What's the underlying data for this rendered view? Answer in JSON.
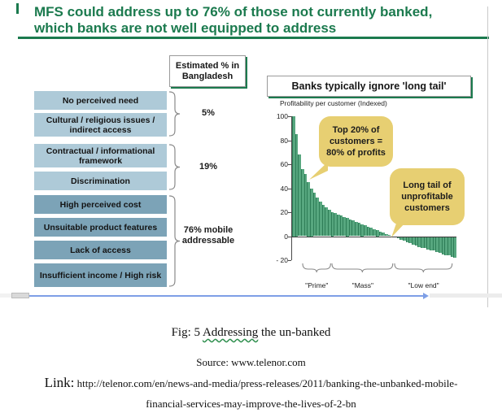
{
  "slide": {
    "title_line1": "MFS could address up to 76% of those not currently banked,",
    "title_line2": "which banks are not well equipped to address",
    "accent_color": "#1b7a4e"
  },
  "left_panel": {
    "header": "Estimated % in Bangladesh",
    "boxes": [
      {
        "text": "No perceived need",
        "shade": "light"
      },
      {
        "text": "Cultural / religious issues / indirect access",
        "shade": "light"
      },
      {
        "text": "Contractual / informational framework",
        "shade": "light"
      },
      {
        "text": "Discrimination",
        "shade": "light"
      },
      {
        "text": "High perceived cost",
        "shade": "dark"
      },
      {
        "text": "Unsuitable product features",
        "shade": "dark"
      },
      {
        "text": "Lack of access",
        "shade": "dark"
      },
      {
        "text": "Insufficient income / High risk",
        "shade": "dark"
      }
    ],
    "group_labels": [
      "5%",
      "19%",
      "76% mobile addressable"
    ],
    "colors": {
      "light_box": "#aecad8",
      "dark_box": "#7ca3b7"
    }
  },
  "chart_data": {
    "type": "bar",
    "panel_title": "Banks typically ignore 'long tail'",
    "ylabel": "Profitability per customer (Indexed)",
    "ylim": [
      -20,
      100
    ],
    "yticks": [
      100,
      80,
      60,
      40,
      20,
      0,
      -20
    ],
    "values": [
      100,
      85,
      68,
      56,
      52,
      45,
      40,
      36,
      32,
      29,
      26,
      24,
      22,
      20,
      19,
      18,
      17,
      16,
      15,
      14,
      13,
      12,
      11,
      10,
      9,
      8,
      7,
      6,
      5,
      4,
      3,
      2,
      1,
      0,
      -1,
      -2,
      -3,
      -4,
      -5,
      -6,
      -7,
      -8,
      -9,
      -10,
      -10,
      -11,
      -12,
      -12,
      -13,
      -14,
      -15,
      -16,
      -16,
      -17,
      -18
    ],
    "bar_color": "#57a77f",
    "bar_edge_color": "#2e7d57",
    "segments": [
      {
        "label": "\"Prime\"",
        "from_pct": 6,
        "to_pct": 24
      },
      {
        "label": "\"Mass\"",
        "from_pct": 24,
        "to_pct": 62
      },
      {
        "label": "\"Low end\"",
        "from_pct": 62,
        "to_pct": 98
      }
    ],
    "annotations": [
      {
        "text": "Top 20% of customers = 80% of profits"
      },
      {
        "text": "Long tail of unprofitable customers"
      }
    ],
    "annotation_color": "#e7cf72"
  },
  "caption": {
    "figure_prefix": "Fig: 5 ",
    "figure_underlined_word": "Addressing",
    "figure_suffix": " the un-banked",
    "source": "Source: www.telenor.com",
    "link_label": "Link:",
    "link_line1": " http://telenor.com/en/news-and-media/press-releases/2011/banking-the-unbanked-mobile-",
    "link_line2": "financial-services-may-improve-the-lives-of-2-bn"
  }
}
